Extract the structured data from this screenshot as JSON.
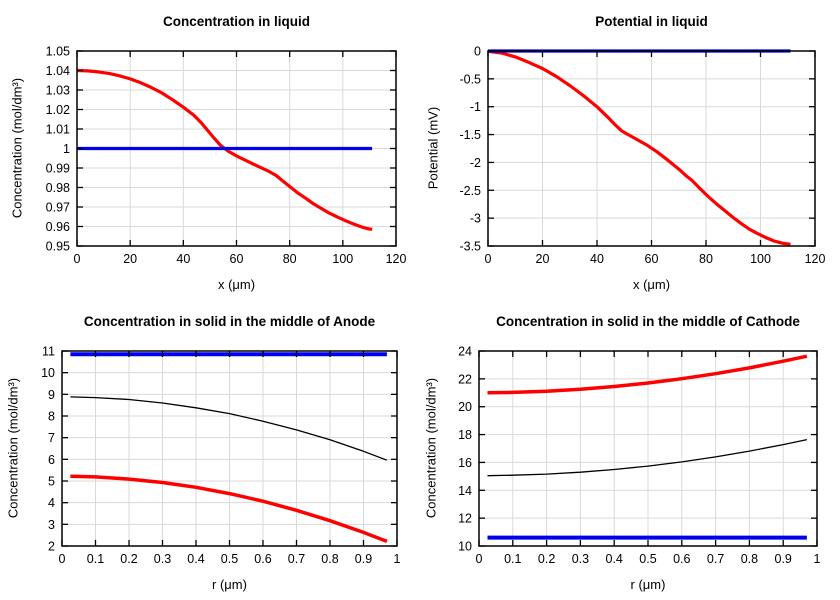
{
  "palette": {
    "red": "#ff0000",
    "blue": "#0000ee",
    "black": "#000000",
    "grid": "#d9d9d9",
    "frame": "#000000",
    "text": "#000000",
    "background": "#ffffff"
  },
  "chart_data": [
    {
      "id": "concentration-in-liquid",
      "type": "line",
      "title": "Concentration in liquid",
      "xlabel": "x (μm)",
      "ylabel": "Concentration (mol/dm³)",
      "xlim": [
        0,
        120
      ],
      "ylim": [
        0.95,
        1.05
      ],
      "xticks": [
        0,
        20,
        40,
        60,
        80,
        100,
        120
      ],
      "xtick_labels": [
        "0",
        "20",
        "40",
        "60",
        "80",
        "100",
        "120"
      ],
      "yticks": [
        0.95,
        0.96,
        0.97,
        0.98,
        0.99,
        1,
        1.01,
        1.02,
        1.03,
        1.04,
        1.05
      ],
      "ytick_labels": [
        "0.95",
        "0.96",
        "0.97",
        "0.98",
        "0.99",
        "1",
        "1.01",
        "1.02",
        "1.03",
        "1.04",
        "1.05"
      ],
      "grid": true,
      "legend": "none",
      "series": [
        {
          "name": "red-curve-concentration-profile",
          "color": "#ff0000",
          "width": 3.2,
          "points": [
            [
              0,
              1.04
            ],
            [
              4,
              1.0398
            ],
            [
              8,
              1.0393
            ],
            [
              12,
              1.0385
            ],
            [
              16,
              1.0373
            ],
            [
              20,
              1.0357
            ],
            [
              24,
              1.0337
            ],
            [
              28,
              1.0313
            ],
            [
              32,
              1.0284
            ],
            [
              36,
              1.025
            ],
            [
              40,
              1.0212
            ],
            [
              44,
              1.017
            ],
            [
              47,
              1.0128
            ],
            [
              49,
              1.0095
            ],
            [
              51,
              1.0062
            ],
            [
              54,
              1.0016
            ],
            [
              57,
              0.9985
            ],
            [
              60,
              0.9962
            ],
            [
              63,
              0.9942
            ],
            [
              66,
              0.9922
            ],
            [
              69,
              0.9903
            ],
            [
              72,
              0.9884
            ],
            [
              75,
              0.9861
            ],
            [
              77,
              0.9838
            ],
            [
              80,
              0.9805
            ],
            [
              83,
              0.9773
            ],
            [
              86,
              0.9745
            ],
            [
              89,
              0.9716
            ],
            [
              92,
              0.9692
            ],
            [
              95,
              0.9668
            ],
            [
              98,
              0.9648
            ],
            [
              101,
              0.963
            ],
            [
              104,
              0.9613
            ],
            [
              107,
              0.9598
            ],
            [
              109,
              0.959
            ],
            [
              111,
              0.9585
            ]
          ]
        },
        {
          "name": "blue-line-initial-concentration",
          "color": "#0000ee",
          "width": 3.2,
          "points": [
            [
              0,
              1.0
            ],
            [
              111,
              1.0
            ]
          ]
        }
      ]
    },
    {
      "id": "potential-in-liquid",
      "type": "line",
      "title": "Potential in liquid",
      "xlabel": "x (μm)",
      "ylabel": "Potential (mV)",
      "xlim": [
        0,
        120
      ],
      "ylim": [
        -3.5,
        0
      ],
      "xticks": [
        0,
        20,
        40,
        60,
        80,
        100,
        120
      ],
      "xtick_labels": [
        "0",
        "20",
        "40",
        "60",
        "80",
        "100",
        "120"
      ],
      "yticks": [
        0,
        -0.5,
        -1,
        -1.5,
        -2,
        -2.5,
        -3,
        -3.5
      ],
      "ytick_labels": [
        "0",
        "-0.5",
        "-1",
        "-1.5",
        "-2",
        "-2.5",
        "-3",
        "-3.5"
      ],
      "grid": true,
      "legend": "none",
      "series": [
        {
          "name": "red-curve-potential-profile",
          "color": "#ff0000",
          "width": 3.2,
          "points": [
            [
              0,
              -0.005
            ],
            [
              5,
              -0.035
            ],
            [
              10,
              -0.105
            ],
            [
              15,
              -0.205
            ],
            [
              20,
              -0.315
            ],
            [
              25,
              -0.455
            ],
            [
              30,
              -0.62
            ],
            [
              35,
              -0.8
            ],
            [
              40,
              -1.0
            ],
            [
              44,
              -1.19
            ],
            [
              47,
              -1.34
            ],
            [
              49,
              -1.43
            ],
            [
              51,
              -1.49
            ],
            [
              54,
              -1.57
            ],
            [
              58,
              -1.68
            ],
            [
              62,
              -1.81
            ],
            [
              66,
              -1.96
            ],
            [
              70,
              -2.12
            ],
            [
              73,
              -2.25
            ],
            [
              75,
              -2.33
            ],
            [
              78,
              -2.48
            ],
            [
              81,
              -2.62
            ],
            [
              84,
              -2.75
            ],
            [
              87,
              -2.87
            ],
            [
              90,
              -2.99
            ],
            [
              93,
              -3.1
            ],
            [
              96,
              -3.2
            ],
            [
              99,
              -3.28
            ],
            [
              102,
              -3.35
            ],
            [
              105,
              -3.41
            ],
            [
              108,
              -3.45
            ],
            [
              111,
              -3.47
            ]
          ]
        },
        {
          "name": "blue-line-reference-zero",
          "color": "#0000ee",
          "width": 3.2,
          "points": [
            [
              0,
              0
            ],
            [
              111,
              0
            ]
          ]
        }
      ]
    },
    {
      "id": "concentration-in-solid-anode",
      "type": "line",
      "title": "Concentration in solid in the middle of Anode",
      "xlabel": "r (μm)",
      "ylabel": "Concentration (mol/dm³)",
      "xlim": [
        0,
        1
      ],
      "ylim": [
        2,
        11
      ],
      "xticks": [
        0,
        0.1,
        0.2,
        0.3,
        0.4,
        0.5,
        0.6,
        0.7,
        0.8,
        0.9,
        1
      ],
      "xtick_labels": [
        "0",
        "0.1",
        "0.2",
        "0.3",
        "0.4",
        "0.5",
        "0.6",
        "0.7",
        "0.8",
        "0.9",
        "1"
      ],
      "yticks": [
        2,
        3,
        4,
        5,
        6,
        7,
        8,
        9,
        10,
        11
      ],
      "ytick_labels": [
        "2",
        "3",
        "4",
        "5",
        "6",
        "7",
        "8",
        "9",
        "10",
        "11"
      ],
      "grid": true,
      "legend": "none",
      "series": [
        {
          "name": "black-curve",
          "color": "#000000",
          "width": 1.3,
          "points": [
            [
              0.025,
              8.88
            ],
            [
              0.1,
              8.85
            ],
            [
              0.2,
              8.76
            ],
            [
              0.3,
              8.6
            ],
            [
              0.4,
              8.38
            ],
            [
              0.5,
              8.11
            ],
            [
              0.6,
              7.76
            ],
            [
              0.7,
              7.36
            ],
            [
              0.8,
              6.9
            ],
            [
              0.9,
              6.37
            ],
            [
              0.97,
              5.96
            ]
          ]
        },
        {
          "name": "red-curve",
          "color": "#ff0000",
          "width": 3.5,
          "points": [
            [
              0.025,
              5.22
            ],
            [
              0.1,
              5.19
            ],
            [
              0.2,
              5.09
            ],
            [
              0.3,
              4.93
            ],
            [
              0.4,
              4.71
            ],
            [
              0.5,
              4.42
            ],
            [
              0.6,
              4.07
            ],
            [
              0.7,
              3.65
            ],
            [
              0.8,
              3.17
            ],
            [
              0.9,
              2.63
            ],
            [
              0.97,
              2.21
            ]
          ]
        },
        {
          "name": "blue-line",
          "color": "#0000ee",
          "width": 4,
          "points": [
            [
              0.025,
              10.85
            ],
            [
              0.97,
              10.85
            ]
          ]
        }
      ]
    },
    {
      "id": "concentration-in-solid-cathode",
      "type": "line",
      "title": "Concentration in solid in the middle of Cathode",
      "xlabel": "r (μm)",
      "ylabel": "Concentration (mol/dm³)",
      "xlim": [
        0,
        1
      ],
      "ylim": [
        10,
        24
      ],
      "xticks": [
        0,
        0.1,
        0.2,
        0.3,
        0.4,
        0.5,
        0.6,
        0.7,
        0.8,
        0.9,
        1
      ],
      "xtick_labels": [
        "0",
        "0.1",
        "0.2",
        "0.3",
        "0.4",
        "0.5",
        "0.6",
        "0.7",
        "0.8",
        "0.9",
        "1"
      ],
      "yticks": [
        10,
        12,
        14,
        16,
        18,
        20,
        22,
        24
      ],
      "ytick_labels": [
        "10",
        "12",
        "14",
        "16",
        "18",
        "20",
        "22",
        "24"
      ],
      "grid": true,
      "legend": "none",
      "series": [
        {
          "name": "black-curve",
          "color": "#000000",
          "width": 1.3,
          "points": [
            [
              0.025,
              15.05
            ],
            [
              0.1,
              15.08
            ],
            [
              0.2,
              15.16
            ],
            [
              0.3,
              15.3
            ],
            [
              0.4,
              15.49
            ],
            [
              0.5,
              15.74
            ],
            [
              0.6,
              16.04
            ],
            [
              0.7,
              16.4
            ],
            [
              0.8,
              16.81
            ],
            [
              0.9,
              17.28
            ],
            [
              0.97,
              17.64
            ]
          ]
        },
        {
          "name": "red-curve",
          "color": "#ff0000",
          "width": 3.5,
          "points": [
            [
              0.025,
              21.0
            ],
            [
              0.1,
              21.03
            ],
            [
              0.2,
              21.11
            ],
            [
              0.3,
              21.25
            ],
            [
              0.4,
              21.45
            ],
            [
              0.5,
              21.7
            ],
            [
              0.6,
              22.01
            ],
            [
              0.7,
              22.37
            ],
            [
              0.8,
              22.79
            ],
            [
              0.9,
              23.27
            ],
            [
              0.97,
              23.63
            ]
          ]
        },
        {
          "name": "blue-line",
          "color": "#0000ee",
          "width": 4,
          "points": [
            [
              0.025,
              10.6
            ],
            [
              0.97,
              10.6
            ]
          ]
        }
      ]
    }
  ]
}
